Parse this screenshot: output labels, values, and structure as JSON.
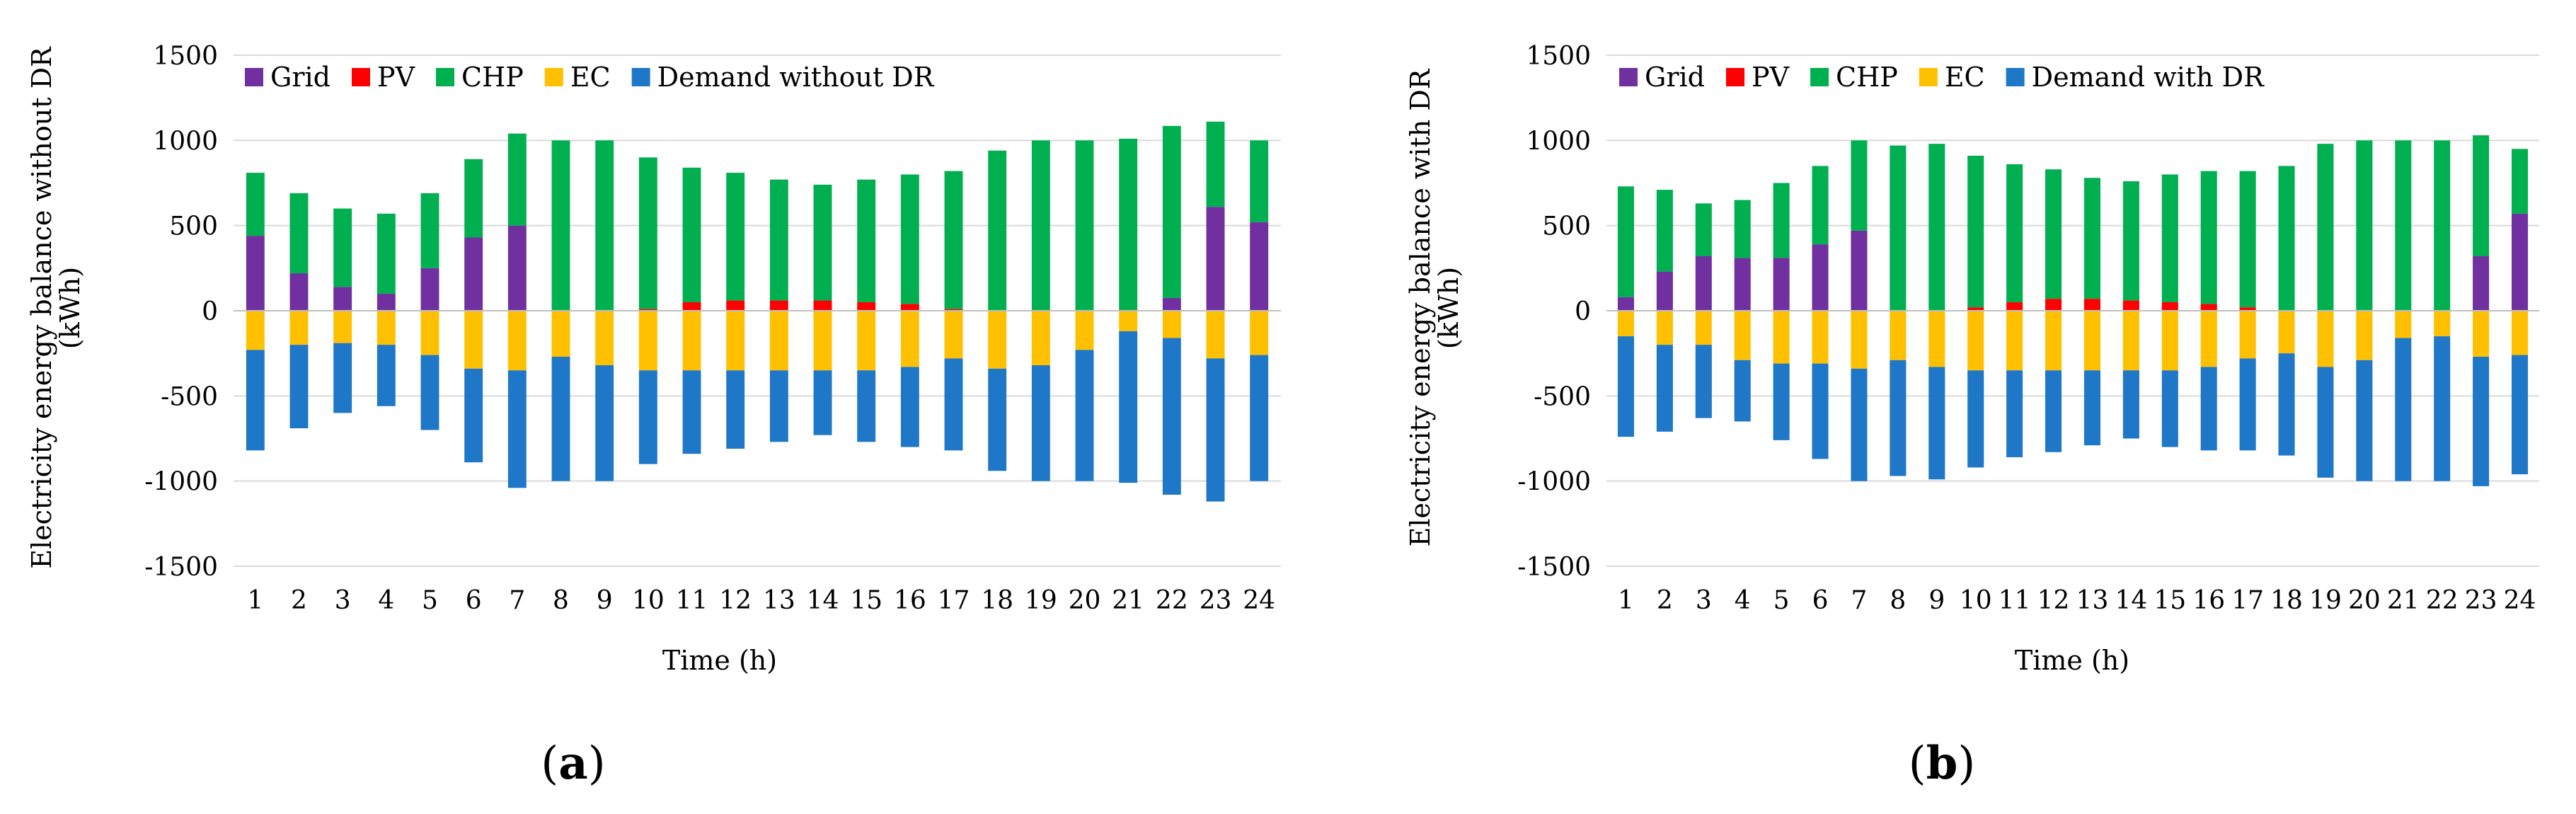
{
  "chart_data": [
    {
      "type": "bar",
      "stacked": true,
      "panel_label": "(a)",
      "panel_letter": "a",
      "title": "",
      "xlabel": "Time (h)",
      "ylabel_line1": "Electricity energy balance without DR",
      "ylabel_line2": "(kWh)",
      "ylim": [
        -1500,
        1500
      ],
      "yticks": [
        1500,
        1000,
        500,
        0,
        -500,
        -1000,
        -1500
      ],
      "grid": true,
      "legend_position": "top-left",
      "categories": [
        "1",
        "2",
        "3",
        "4",
        "5",
        "6",
        "7",
        "8",
        "9",
        "10",
        "11",
        "12",
        "13",
        "14",
        "15",
        "16",
        "17",
        "18",
        "19",
        "20",
        "21",
        "22",
        "23",
        "24"
      ],
      "series": [
        {
          "name": "Grid",
          "color": "#7030A0",
          "values": [
            440,
            220,
            140,
            100,
            250,
            430,
            500,
            0,
            0,
            0,
            0,
            0,
            0,
            0,
            0,
            0,
            0,
            0,
            0,
            0,
            0,
            75,
            610,
            520
          ]
        },
        {
          "name": "PV",
          "color": "#FF0000",
          "values": [
            0,
            0,
            0,
            0,
            0,
            0,
            0,
            0,
            0,
            10,
            50,
            60,
            60,
            60,
            50,
            40,
            10,
            0,
            0,
            0,
            0,
            0,
            0,
            0
          ]
        },
        {
          "name": "CHP",
          "color": "#00B050",
          "values": [
            370,
            470,
            460,
            470,
            440,
            460,
            540,
            1000,
            1000,
            890,
            790,
            750,
            710,
            680,
            720,
            760,
            810,
            940,
            1000,
            1000,
            1010,
            1010,
            500,
            480
          ]
        },
        {
          "name": "EC",
          "color": "#FFC000",
          "values": [
            -230,
            -200,
            -190,
            -200,
            -260,
            -340,
            -350,
            -270,
            -320,
            -350,
            -350,
            -350,
            -350,
            -350,
            -350,
            -330,
            -280,
            -340,
            -320,
            -230,
            -120,
            -160,
            -280,
            -260
          ]
        },
        {
          "name": "Demand without DR",
          "color": "#1F77C8",
          "values": [
            -590,
            -490,
            -410,
            -360,
            -440,
            -550,
            -690,
            -730,
            -680,
            -550,
            -490,
            -460,
            -420,
            -380,
            -420,
            -470,
            -540,
            -600,
            -680,
            -770,
            -890,
            -920,
            -840,
            -740
          ]
        }
      ]
    },
    {
      "type": "bar",
      "stacked": true,
      "panel_label": "(b)",
      "panel_letter": "b",
      "title": "",
      "xlabel": "Time (h)",
      "ylabel_line1": "Electricity energy balance with DR",
      "ylabel_line2": "(kWh)",
      "ylim": [
        -1500,
        1500
      ],
      "yticks": [
        1500,
        1000,
        500,
        0,
        -500,
        -1000,
        -1500
      ],
      "grid": true,
      "legend_position": "top-left",
      "categories": [
        "1",
        "2",
        "3",
        "4",
        "5",
        "6",
        "7",
        "8",
        "9",
        "10",
        "11",
        "12",
        "13",
        "14",
        "15",
        "16",
        "17",
        "18",
        "19",
        "20",
        "21",
        "22",
        "23",
        "24"
      ],
      "series": [
        {
          "name": "Grid",
          "color": "#7030A0",
          "values": [
            80,
            230,
            320,
            310,
            310,
            390,
            470,
            0,
            0,
            0,
            0,
            0,
            0,
            0,
            0,
            0,
            0,
            0,
            0,
            0,
            0,
            0,
            320,
            570
          ]
        },
        {
          "name": "PV",
          "color": "#FF0000",
          "values": [
            0,
            0,
            0,
            0,
            0,
            0,
            0,
            0,
            0,
            20,
            50,
            70,
            70,
            60,
            50,
            40,
            20,
            0,
            0,
            0,
            0,
            0,
            0,
            0
          ]
        },
        {
          "name": "CHP",
          "color": "#00B050",
          "values": [
            650,
            480,
            310,
            340,
            440,
            460,
            530,
            970,
            980,
            890,
            810,
            760,
            710,
            700,
            750,
            780,
            800,
            850,
            980,
            1000,
            1000,
            1000,
            710,
            380
          ]
        },
        {
          "name": "EC",
          "color": "#FFC000",
          "values": [
            -150,
            -200,
            -200,
            -290,
            -310,
            -310,
            -340,
            -290,
            -330,
            -350,
            -350,
            -350,
            -350,
            -350,
            -350,
            -330,
            -280,
            -250,
            -330,
            -290,
            -160,
            -150,
            -270,
            -260
          ]
        },
        {
          "name": "Demand with DR",
          "color": "#1F77C8",
          "values": [
            -590,
            -510,
            -430,
            -360,
            -450,
            -560,
            -660,
            -680,
            -660,
            -570,
            -510,
            -480,
            -440,
            -400,
            -450,
            -490,
            -540,
            -600,
            -650,
            -710,
            -840,
            -850,
            -760,
            -700
          ]
        }
      ]
    }
  ]
}
